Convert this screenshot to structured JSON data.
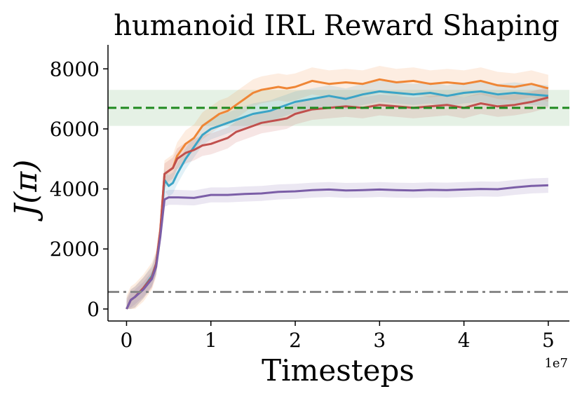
{
  "chart_data": {
    "type": "line",
    "title": "humanoid IRL Reward Shaping",
    "xlabel": "Timesteps",
    "ylabel": "J(π)",
    "x_offset_label": "1e7",
    "xlim": [
      -0.22,
      5.25
    ],
    "ylim": [
      -400,
      8800
    ],
    "x_ticks": [
      0,
      1,
      2,
      3,
      4,
      5
    ],
    "x_tick_labels": [
      "0",
      "1",
      "2",
      "3",
      "4",
      "5"
    ],
    "y_ticks": [
      0,
      2000,
      4000,
      6000,
      8000
    ],
    "y_tick_labels": [
      "0",
      "2000",
      "4000",
      "6000",
      "8000"
    ],
    "grid": false,
    "reference_lines": [
      {
        "y": 6700,
        "style": "dashed",
        "color": "#1f8a1f",
        "band": [
          6100,
          7300
        ],
        "band_color": "#cfe6cf"
      },
      {
        "y": 570,
        "style": "dashdot",
        "color": "#888888"
      }
    ],
    "series": [
      {
        "color": "#ef8636",
        "band": 450,
        "x": [
          0,
          0.05,
          0.1,
          0.2,
          0.3,
          0.35,
          0.4,
          0.45,
          0.5,
          0.55,
          0.6,
          0.7,
          0.8,
          0.9,
          1.0,
          1.1,
          1.2,
          1.3,
          1.4,
          1.5,
          1.6,
          1.7,
          1.8,
          1.9,
          2.0,
          2.2,
          2.4,
          2.6,
          2.8,
          3.0,
          3.2,
          3.4,
          3.6,
          3.8,
          4.0,
          4.2,
          4.4,
          4.6,
          4.8,
          5.0
        ],
        "y": [
          0,
          300,
          400,
          700,
          1100,
          1500,
          2600,
          4500,
          4600,
          4700,
          5100,
          5500,
          5700,
          6100,
          6300,
          6500,
          6600,
          6800,
          7000,
          7200,
          7300,
          7350,
          7400,
          7350,
          7400,
          7600,
          7500,
          7550,
          7500,
          7650,
          7550,
          7600,
          7500,
          7550,
          7500,
          7600,
          7450,
          7400,
          7500,
          7350
        ]
      },
      {
        "color": "#3ba4c6",
        "band": 350,
        "x": [
          0,
          0.05,
          0.1,
          0.2,
          0.3,
          0.35,
          0.4,
          0.45,
          0.5,
          0.55,
          0.6,
          0.7,
          0.8,
          0.9,
          1.0,
          1.1,
          1.2,
          1.3,
          1.4,
          1.5,
          1.6,
          1.7,
          1.8,
          1.9,
          2.0,
          2.2,
          2.4,
          2.6,
          2.8,
          3.0,
          3.2,
          3.4,
          3.6,
          3.8,
          4.0,
          4.2,
          4.4,
          4.6,
          4.8,
          5.0
        ],
        "y": [
          0,
          300,
          400,
          700,
          1100,
          1500,
          2500,
          4300,
          4100,
          4200,
          4500,
          5000,
          5400,
          5800,
          6000,
          6100,
          6200,
          6300,
          6400,
          6500,
          6550,
          6600,
          6700,
          6800,
          6900,
          7000,
          7100,
          7000,
          7150,
          7250,
          7200,
          7150,
          7200,
          7100,
          7200,
          7250,
          7150,
          7200,
          7150,
          7100
        ]
      },
      {
        "color": "#c0504d",
        "band": 350,
        "x": [
          0,
          0.05,
          0.1,
          0.2,
          0.3,
          0.35,
          0.4,
          0.45,
          0.5,
          0.55,
          0.6,
          0.7,
          0.8,
          0.9,
          1.0,
          1.1,
          1.2,
          1.3,
          1.4,
          1.5,
          1.6,
          1.7,
          1.8,
          1.9,
          2.0,
          2.2,
          2.4,
          2.6,
          2.8,
          3.0,
          3.2,
          3.4,
          3.6,
          3.8,
          4.0,
          4.2,
          4.4,
          4.6,
          4.8,
          5.0
        ],
        "y": [
          0,
          300,
          400,
          700,
          1050,
          1500,
          2600,
          4500,
          4600,
          4700,
          5000,
          5200,
          5300,
          5450,
          5500,
          5600,
          5700,
          5900,
          6000,
          6100,
          6200,
          6250,
          6300,
          6350,
          6500,
          6650,
          6700,
          6750,
          6700,
          6800,
          6750,
          6700,
          6750,
          6800,
          6700,
          6850,
          6750,
          6800,
          6900,
          7050
        ]
      },
      {
        "color": "#7b5ea7",
        "band": 250,
        "x": [
          0,
          0.05,
          0.1,
          0.2,
          0.3,
          0.35,
          0.4,
          0.45,
          0.5,
          0.6,
          0.8,
          1.0,
          1.2,
          1.4,
          1.6,
          1.8,
          2.0,
          2.2,
          2.4,
          2.6,
          2.8,
          3.0,
          3.2,
          3.4,
          3.6,
          3.8,
          4.0,
          4.2,
          4.4,
          4.6,
          4.8,
          5.0
        ],
        "y": [
          0,
          300,
          400,
          650,
          1000,
          1400,
          2400,
          3650,
          3720,
          3720,
          3700,
          3800,
          3800,
          3830,
          3850,
          3900,
          3920,
          3960,
          3980,
          3950,
          3960,
          3980,
          3960,
          3950,
          3970,
          3960,
          3980,
          4000,
          3990,
          4050,
          4100,
          4120
        ]
      }
    ]
  }
}
